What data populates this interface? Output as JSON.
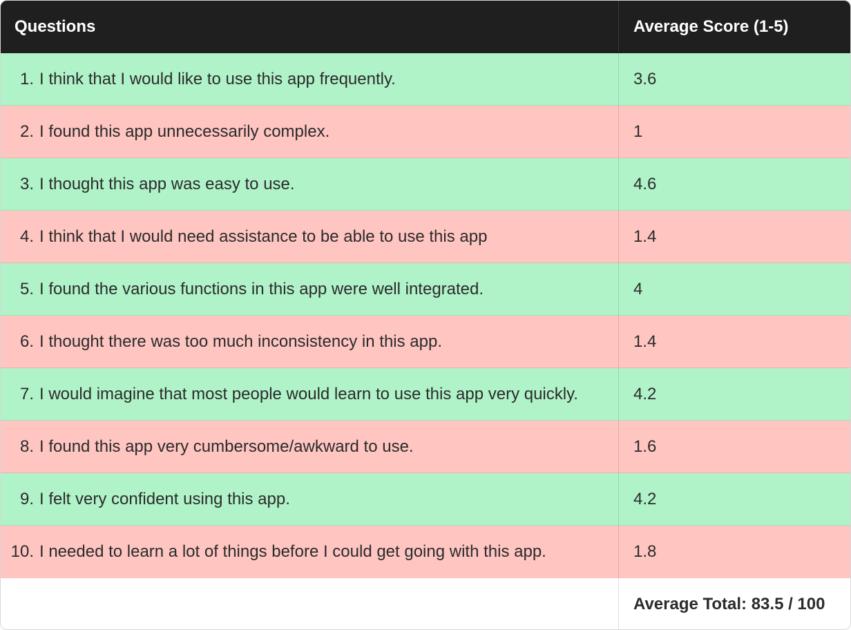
{
  "table": {
    "headers": {
      "question": "Questions",
      "score": "Average Score (1-5)"
    },
    "rows": [
      {
        "num": "1.",
        "question": "I think that I would like to use this app frequently.",
        "score": "3.6",
        "tone": "green"
      },
      {
        "num": "2.",
        "question": "I found this app unnecessarily complex.",
        "score": "1",
        "tone": "red"
      },
      {
        "num": "3.",
        "question": "I thought this app was easy to use.",
        "score": "4.6",
        "tone": "green"
      },
      {
        "num": "4.",
        "question": "I think that I would need assistance to be able to use this app",
        "score": "1.4",
        "tone": "red"
      },
      {
        "num": "5.",
        "question": "I found the various functions in this app were well integrated.",
        "score": "4",
        "tone": "green"
      },
      {
        "num": "6.",
        "question": "I thought there was too much inconsistency in this app.",
        "score": "1.4",
        "tone": "red"
      },
      {
        "num": "7.",
        "question": "I would imagine that most people would learn to use this app very quickly.",
        "score": "4.2",
        "tone": "green"
      },
      {
        "num": "8.",
        "question": "I found this app very cumbersome/awkward to use.",
        "score": "1.6",
        "tone": "red"
      },
      {
        "num": "9.",
        "question": "I felt very confident using this app.",
        "score": "4.2",
        "tone": "green"
      },
      {
        "num": "10.",
        "question": "I needed to learn a lot of things before I could get going with this app.",
        "score": "1.8",
        "tone": "red"
      }
    ],
    "footer": {
      "total": "Average Total: 83.5 / 100"
    }
  },
  "colors": {
    "header_bg": "#1f1f1f",
    "positive_row": "#b0f3c9",
    "negative_row": "#fec5c1"
  }
}
